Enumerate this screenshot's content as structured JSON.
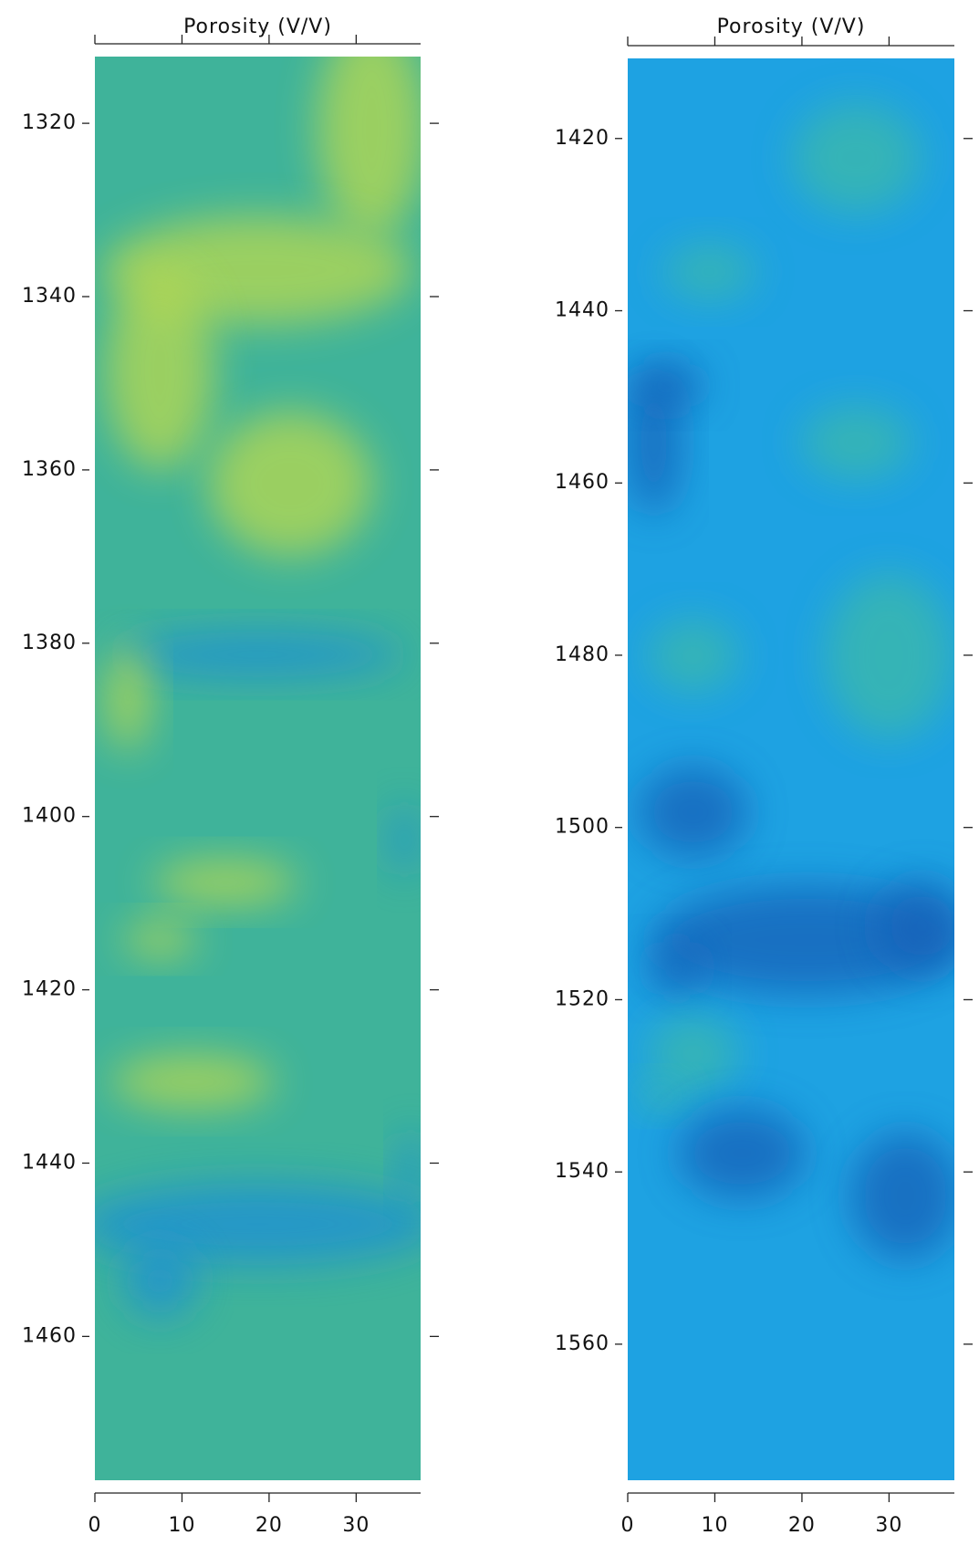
{
  "chart_data": [
    {
      "type": "heatmap",
      "title": "Porosity (V/V)",
      "color": "#3fb39a",
      "accent": "#b9d94f",
      "shade": "#1e8fd6",
      "xlim": [
        0,
        37.4
      ],
      "xticks": [
        0,
        10,
        20,
        30
      ],
      "ylim": [
        1312.3,
        1476.6
      ],
      "yticks": [
        1320,
        1340,
        1360,
        1380,
        1400,
        1420,
        1440,
        1460
      ]
    },
    {
      "type": "heatmap",
      "title": "Porosity (V/V)",
      "color": "#1ea2e2",
      "accent": "#3ebaa8",
      "shade": "#1660b8",
      "xlim": [
        0,
        37.5
      ],
      "xticks": [
        0,
        10,
        20,
        30
      ],
      "ylim": [
        1410.7,
        1575.8
      ],
      "yticks": [
        1420,
        1440,
        1460,
        1480,
        1500,
        1520,
        1540,
        1560
      ]
    }
  ]
}
